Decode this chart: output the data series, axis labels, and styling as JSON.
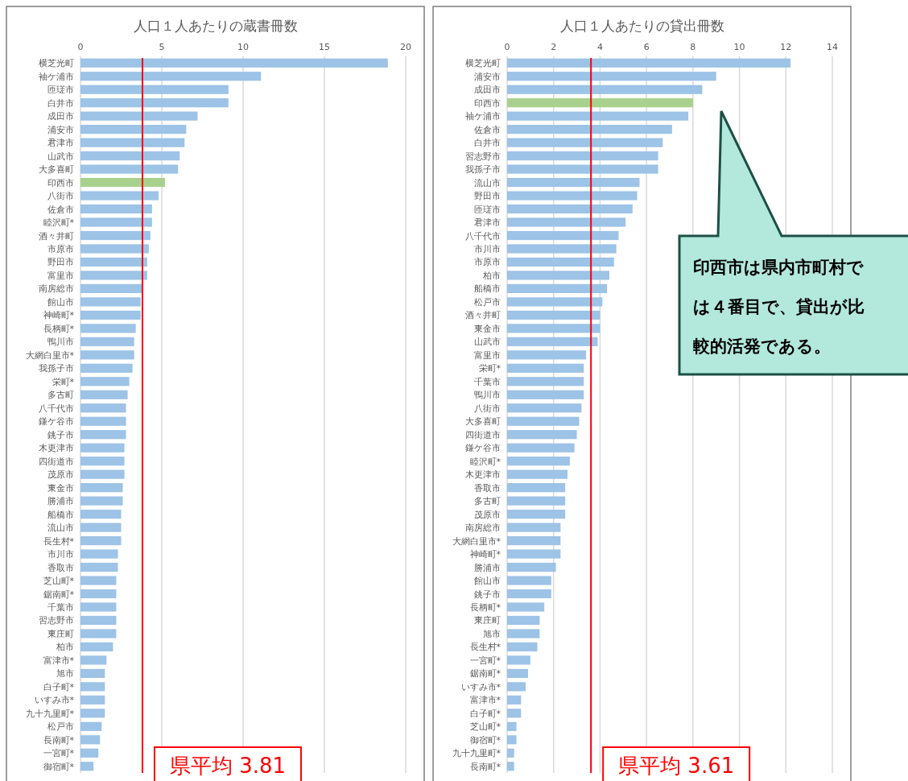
{
  "chart_data": [
    {
      "type": "bar",
      "orientation": "horizontal",
      "title": "人口１人あたりの蔵書冊数",
      "categories": [
        "横芝光町",
        "袖ケ浦市",
        "匝瑳市",
        "白井市",
        "成田市",
        "浦安市",
        "君津市",
        "山武市",
        "大多喜町",
        "印西市",
        "八街市",
        "佐倉市",
        "睦沢町*",
        "酒々井町",
        "市原市",
        "野田市",
        "富里市",
        "南房総市",
        "館山市",
        "神崎町*",
        "長柄町*",
        "鴨川市",
        "大網白里市*",
        "我孫子市",
        "栄町*",
        "多古町",
        "八千代市",
        "鎌ケ谷市",
        "銚子市",
        "木更津市",
        "四街道市",
        "茂原市",
        "東金市",
        "勝浦市",
        "船橋市",
        "流山市",
        "長生村*",
        "市川市",
        "香取市",
        "芝山町*",
        "鋸南町*",
        "千葉市",
        "習志野市",
        "東庄町",
        "柏市",
        "富津市*",
        "旭市",
        "白子町*",
        "いすみ市*",
        "九十九里町*",
        "松戸市",
        "長南町*",
        "一宮町*",
        "御宿町*"
      ],
      "values": [
        18.9,
        11.1,
        9.1,
        9.1,
        7.2,
        6.5,
        6.4,
        6.1,
        6.0,
        5.2,
        4.8,
        4.4,
        4.4,
        4.3,
        4.2,
        4.1,
        4.1,
        3.8,
        3.7,
        3.7,
        3.4,
        3.3,
        3.3,
        3.2,
        3.0,
        2.9,
        2.8,
        2.8,
        2.8,
        2.7,
        2.7,
        2.7,
        2.6,
        2.6,
        2.5,
        2.5,
        2.5,
        2.3,
        2.3,
        2.2,
        2.2,
        2.2,
        2.2,
        2.2,
        2.0,
        1.6,
        1.5,
        1.5,
        1.5,
        1.5,
        1.3,
        1.2,
        1.1,
        0.8
      ],
      "colors": [
        "#9dc3e6",
        "#9dc3e6",
        "#9dc3e6",
        "#9dc3e6",
        "#9dc3e6",
        "#9dc3e6",
        "#9dc3e6",
        "#9dc3e6",
        "#9dc3e6",
        "#a9d18e",
        "#9dc3e6",
        "#9dc3e6",
        "#9dc3e6",
        "#9dc3e6",
        "#9dc3e6",
        "#9dc3e6",
        "#9dc3e6",
        "#9dc3e6",
        "#9dc3e6",
        "#9dc3e6",
        "#9dc3e6",
        "#9dc3e6",
        "#9dc3e6",
        "#9dc3e6",
        "#9dc3e6",
        "#9dc3e6",
        "#9dc3e6",
        "#9dc3e6",
        "#9dc3e6",
        "#9dc3e6",
        "#9dc3e6",
        "#9dc3e6",
        "#9dc3e6",
        "#9dc3e6",
        "#9dc3e6",
        "#9dc3e6",
        "#9dc3e6",
        "#9dc3e6",
        "#9dc3e6",
        "#9dc3e6",
        "#9dc3e6",
        "#9dc3e6",
        "#9dc3e6",
        "#9dc3e6",
        "#9dc3e6",
        "#9dc3e6",
        "#9dc3e6",
        "#9dc3e6",
        "#9dc3e6",
        "#9dc3e6",
        "#9dc3e6",
        "#9dc3e6",
        "#9dc3e6",
        "#9dc3e6"
      ],
      "xlim": [
        0,
        20
      ],
      "xticks": [
        0,
        5,
        10,
        15,
        20
      ],
      "grid": "x",
      "ref_lines": [
        {
          "axis": "x",
          "value": 3.81,
          "label": "県平均 3.81",
          "color": "#ff0000"
        }
      ]
    },
    {
      "type": "bar",
      "orientation": "horizontal",
      "title": "人口１人あたりの貸出冊数",
      "categories": [
        "横芝光町",
        "浦安市",
        "成田市",
        "印西市",
        "袖ケ浦市",
        "佐倉市",
        "白井市",
        "習志野市",
        "我孫子市",
        "流山市",
        "野田市",
        "匝瑳市",
        "君津市",
        "八千代市",
        "市川市",
        "市原市",
        "柏市",
        "船橋市",
        "松戸市",
        "酒々井町",
        "東金市",
        "山武市",
        "富里市",
        "栄町*",
        "千葉市",
        "鴨川市",
        "八街市",
        "大多喜町",
        "四街道市",
        "鎌ケ谷市",
        "睦沢町*",
        "木更津市",
        "香取市",
        "多古町",
        "茂原市",
        "南房総市",
        "大網白里市*",
        "神崎町*",
        "勝浦市",
        "館山市",
        "銚子市",
        "長柄町*",
        "東庄町",
        "旭市",
        "長生村*",
        "一宮町*",
        "鋸南町*",
        "いすみ市*",
        "富津市*",
        "白子町*",
        "芝山町*",
        "御宿町*",
        "九十九里町*",
        "長南町*"
      ],
      "values": [
        12.2,
        9.0,
        8.4,
        8.0,
        7.8,
        7.1,
        6.7,
        6.5,
        6.5,
        5.7,
        5.6,
        5.4,
        5.1,
        4.8,
        4.7,
        4.6,
        4.4,
        4.3,
        4.1,
        4.0,
        4.0,
        3.9,
        3.4,
        3.3,
        3.3,
        3.3,
        3.2,
        3.1,
        3.0,
        2.9,
        2.7,
        2.6,
        2.5,
        2.5,
        2.5,
        2.3,
        2.3,
        2.3,
        2.1,
        1.9,
        1.9,
        1.6,
        1.4,
        1.4,
        1.3,
        1.0,
        0.9,
        0.8,
        0.6,
        0.6,
        0.4,
        0.4,
        0.3,
        0.3
      ],
      "colors": [
        "#9dc3e6",
        "#9dc3e6",
        "#9dc3e6",
        "#a9d18e",
        "#9dc3e6",
        "#9dc3e6",
        "#9dc3e6",
        "#9dc3e6",
        "#9dc3e6",
        "#9dc3e6",
        "#9dc3e6",
        "#9dc3e6",
        "#9dc3e6",
        "#9dc3e6",
        "#9dc3e6",
        "#9dc3e6",
        "#9dc3e6",
        "#9dc3e6",
        "#9dc3e6",
        "#9dc3e6",
        "#9dc3e6",
        "#9dc3e6",
        "#9dc3e6",
        "#9dc3e6",
        "#9dc3e6",
        "#9dc3e6",
        "#9dc3e6",
        "#9dc3e6",
        "#9dc3e6",
        "#9dc3e6",
        "#9dc3e6",
        "#9dc3e6",
        "#9dc3e6",
        "#9dc3e6",
        "#9dc3e6",
        "#9dc3e6",
        "#9dc3e6",
        "#9dc3e6",
        "#9dc3e6",
        "#9dc3e6",
        "#9dc3e6",
        "#9dc3e6",
        "#9dc3e6",
        "#9dc3e6",
        "#9dc3e6",
        "#9dc3e6",
        "#9dc3e6",
        "#9dc3e6",
        "#9dc3e6",
        "#9dc3e6",
        "#9dc3e6",
        "#9dc3e6",
        "#9dc3e6",
        "#9dc3e6"
      ],
      "xlim": [
        0,
        14
      ],
      "xticks": [
        0,
        2,
        4,
        6,
        8,
        10,
        12,
        14
      ],
      "grid": "x",
      "ref_lines": [
        {
          "axis": "x",
          "value": 3.61,
          "label": "県平均 3.61",
          "color": "#ff0000"
        }
      ],
      "annotations": [
        "印西市は県内市町村では４番目で、貸出が比較的活発である。"
      ]
    }
  ]
}
